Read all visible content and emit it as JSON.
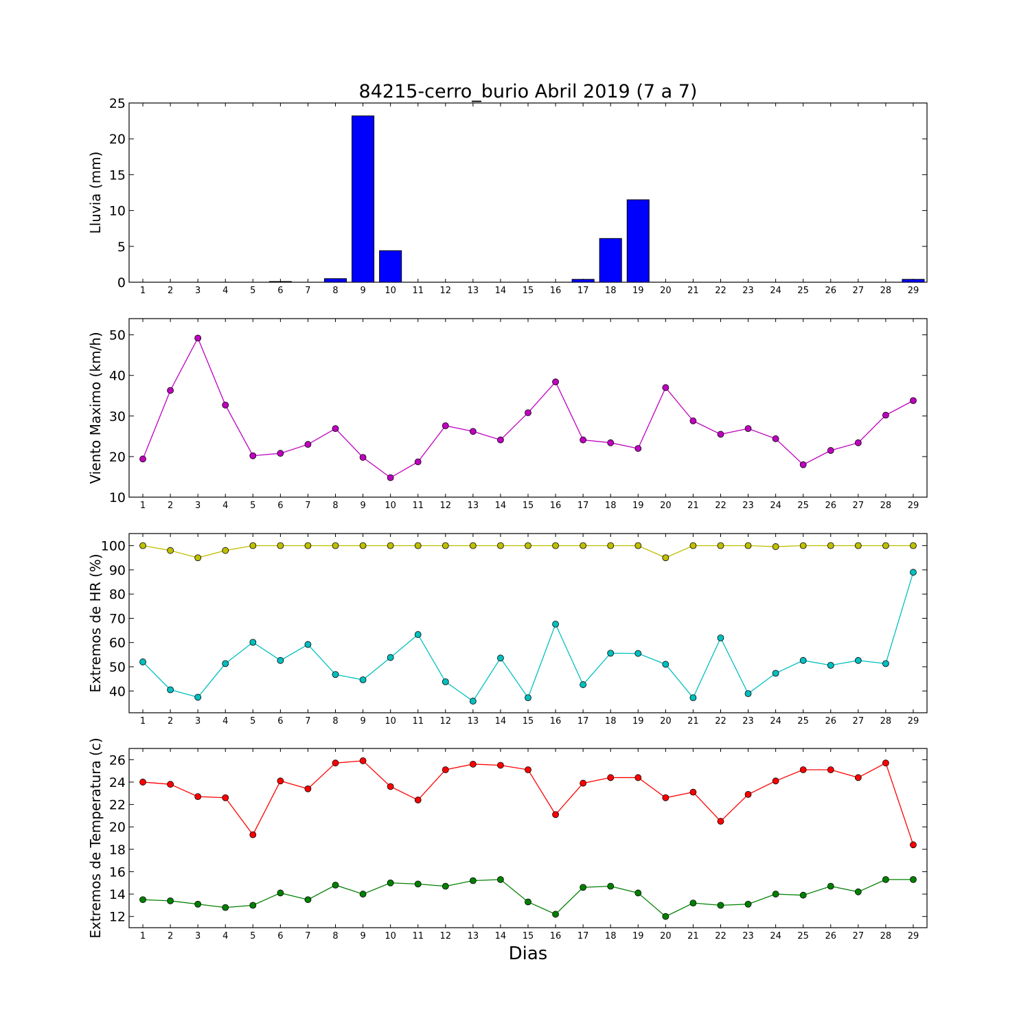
{
  "title": "84215-cerro_burio Abril 2019  (7 a 7)",
  "xlabel": "Dias",
  "colors": {
    "bar": "#0000ff",
    "wind": "#bf00bf",
    "hr_max": "#bfbf00",
    "hr_min": "#00bfbf",
    "t_max": "#ff0000",
    "t_min": "#008000"
  },
  "chart_data": [
    {
      "type": "bar",
      "ylabel": "Lluvia (mm)",
      "categories": [
        "1",
        "2",
        "3",
        "4",
        "5",
        "6",
        "7",
        "8",
        "9",
        "10",
        "11",
        "12",
        "13",
        "14",
        "15",
        "16",
        "17",
        "18",
        "19",
        "20",
        "21",
        "22",
        "23",
        "24",
        "25",
        "26",
        "27",
        "28",
        "29"
      ],
      "ylim": [
        0,
        25
      ],
      "yticks": [
        0,
        5,
        10,
        15,
        20,
        25
      ],
      "series": [
        {
          "values": [
            0,
            0,
            0,
            0,
            0,
            0.1,
            0,
            0.5,
            23.2,
            4.4,
            0,
            0,
            0,
            0,
            0,
            0,
            0.4,
            6.1,
            11.5,
            0,
            0,
            0,
            0,
            0,
            0,
            0,
            0,
            0,
            0.4
          ]
        }
      ]
    },
    {
      "type": "line",
      "ylabel": "Viento Maximo (km/h)",
      "categories": [
        "1",
        "2",
        "3",
        "4",
        "5",
        "6",
        "7",
        "8",
        "9",
        "10",
        "11",
        "12",
        "13",
        "14",
        "15",
        "16",
        "17",
        "18",
        "19",
        "20",
        "21",
        "22",
        "23",
        "24",
        "25",
        "26",
        "27",
        "28",
        "29"
      ],
      "ylim": [
        10,
        54
      ],
      "yticks": [
        10,
        20,
        30,
        40,
        50
      ],
      "series": [
        {
          "values": [
            19.4,
            36.3,
            49.2,
            32.7,
            20.2,
            20.8,
            23.0,
            26.9,
            19.8,
            14.8,
            18.7,
            27.6,
            26.2,
            24.1,
            30.8,
            38.4,
            24.1,
            23.4,
            22.0,
            37.0,
            28.8,
            25.5,
            26.9,
            24.4,
            18.0,
            21.5,
            23.4,
            30.2,
            33.8
          ]
        }
      ]
    },
    {
      "type": "line",
      "ylabel": "Extremos de HR (%)",
      "categories": [
        "1",
        "2",
        "3",
        "4",
        "5",
        "6",
        "7",
        "8",
        "9",
        "10",
        "11",
        "12",
        "13",
        "14",
        "15",
        "16",
        "17",
        "18",
        "19",
        "20",
        "21",
        "22",
        "23",
        "24",
        "25",
        "26",
        "27",
        "28",
        "29"
      ],
      "ylim": [
        31,
        105
      ],
      "yticks": [
        40,
        50,
        60,
        70,
        80,
        90,
        100
      ],
      "series": [
        {
          "values": [
            100,
            98,
            95,
            98,
            100,
            100,
            100,
            100,
            100,
            100,
            100,
            100,
            100,
            100,
            100,
            100,
            100,
            100,
            100,
            95,
            100,
            100,
            100,
            99.6,
            100,
            100,
            100,
            100,
            100
          ]
        },
        {
          "values": [
            52,
            40.5,
            37.4,
            51.3,
            60.1,
            52.6,
            59.2,
            46.8,
            44.6,
            53.8,
            63.3,
            43.8,
            35.8,
            53.6,
            37.2,
            67.6,
            42.6,
            55.6,
            55.5,
            51.0,
            37.2,
            61.9,
            38.9,
            47.3,
            52.6,
            50.6,
            52.6,
            51.3,
            89.0
          ]
        }
      ]
    },
    {
      "type": "line",
      "ylabel": "Extremos de Temperatura (c)",
      "categories": [
        "1",
        "2",
        "3",
        "4",
        "5",
        "6",
        "7",
        "8",
        "9",
        "10",
        "11",
        "12",
        "13",
        "14",
        "15",
        "16",
        "17",
        "18",
        "19",
        "20",
        "21",
        "22",
        "23",
        "24",
        "25",
        "26",
        "27",
        "28",
        "29"
      ],
      "ylim": [
        11,
        27
      ],
      "yticks": [
        12,
        14,
        16,
        18,
        20,
        22,
        24,
        26
      ],
      "series": [
        {
          "values": [
            24.0,
            23.8,
            22.7,
            22.6,
            19.3,
            24.1,
            23.4,
            25.7,
            25.9,
            23.6,
            22.4,
            25.1,
            25.6,
            25.5,
            25.1,
            21.1,
            23.9,
            24.4,
            24.4,
            22.6,
            23.1,
            20.5,
            22.9,
            24.1,
            25.1,
            25.1,
            24.4,
            25.7,
            18.4
          ]
        },
        {
          "values": [
            13.5,
            13.4,
            13.1,
            12.8,
            13.0,
            14.1,
            13.5,
            14.8,
            14.0,
            15.0,
            14.9,
            14.7,
            15.2,
            15.3,
            13.3,
            12.2,
            14.6,
            14.7,
            14.1,
            12.0,
            13.2,
            13.0,
            13.1,
            14.0,
            13.9,
            14.7,
            14.2,
            15.3,
            15.3
          ]
        }
      ]
    }
  ]
}
